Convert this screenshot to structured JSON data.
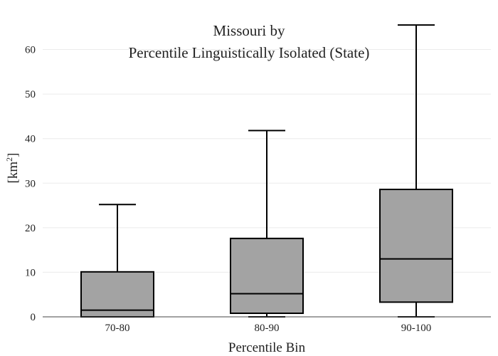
{
  "chart_data": {
    "type": "box",
    "title_lines": [
      "Missouri  by",
      "Percentile Linguistically Isolated (State)"
    ],
    "xlabel": "Percentile Bin",
    "ylabel": "[km",
    "ylabel_sup": "2",
    "ylabel_close": "]",
    "ylim": [
      0,
      66
    ],
    "yticks": [
      0,
      10,
      20,
      30,
      40,
      50,
      60
    ],
    "ytick_labels": [
      "0",
      "10",
      "20",
      "30",
      "40",
      "50",
      "60"
    ],
    "grid": true,
    "categories": [
      "70-80",
      "80-90",
      "90-100"
    ],
    "boxes": [
      {
        "category": "70-80",
        "min": 0,
        "q1": 0,
        "median": 1.5,
        "q3": 10.1,
        "max": 25.2
      },
      {
        "category": "80-90",
        "min": 0,
        "q1": 0.8,
        "median": 5.2,
        "q3": 17.6,
        "max": 41.8
      },
      {
        "category": "90-100",
        "min": 0,
        "q1": 3.3,
        "median": 13.0,
        "q3": 28.6,
        "max": 65.5
      }
    ],
    "colors": {
      "box_fill": "#a3a3a3",
      "stroke": "#000000",
      "grid": "#ebebeb",
      "axis": "#444444"
    }
  }
}
